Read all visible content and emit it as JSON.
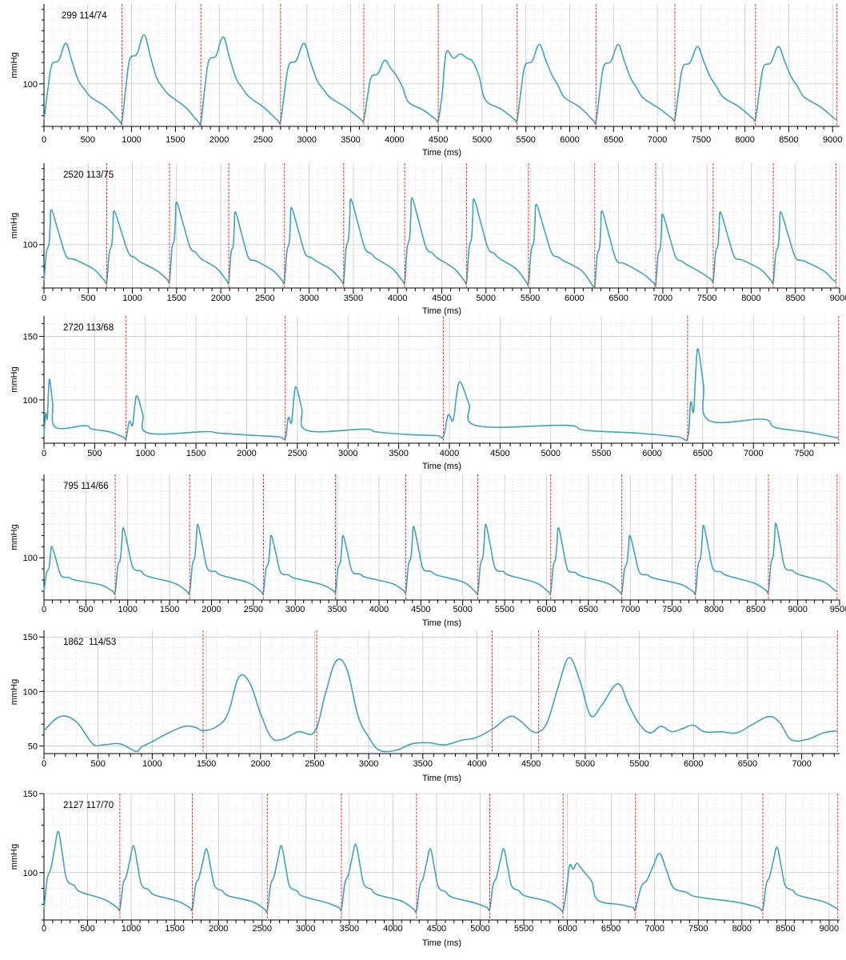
{
  "colors": {
    "trace": "#3fa2c3",
    "marker": "#e8312f",
    "grid_major": "#c8c8c8",
    "grid_minor": "#e2e2e2",
    "axis": "#000000"
  },
  "chart_data": [
    {
      "type": "line",
      "title": "299 114/74",
      "xlabel": "Time (ms)",
      "ylabel": "mmHg",
      "xlim": [
        0,
        9080
      ],
      "ylim": [
        60,
        175
      ],
      "x_ticks": [
        0,
        500,
        1000,
        1500,
        2000,
        2500,
        3000,
        3500,
        4000,
        4500,
        5000,
        5500,
        6000,
        6500,
        7000,
        7500,
        8000,
        8500,
        9000
      ],
      "y_ticks": [
        100
      ],
      "grid": true,
      "beats": [
        0,
        890,
        1790,
        2700,
        3650,
        4500,
        5400,
        6300,
        7200,
        8120,
        9050
      ],
      "systolic": [
        138,
        146,
        144,
        138,
        122,
        128,
        137,
        137,
        135,
        135
      ],
      "diastolic": [
        66,
        65,
        64,
        65,
        66,
        66,
        66,
        65,
        67,
        67
      ],
      "notch_ratio": [
        0.72,
        0.72,
        0.72,
        0.72,
        0.72,
        1.02,
        0.72,
        0.72,
        0.72,
        0.72
      ],
      "notch_level": [
        0.52,
        0.5,
        0.52,
        0.52,
        0.74,
        0.88,
        0.6,
        0.56,
        0.58,
        0.58
      ],
      "tidal_pos": 0.1,
      "peak_pos": 0.28,
      "notch_pos": 0.44,
      "dicrotic_pos": 0.52,
      "dicrotic_size": 0.06,
      "dicrotic_level": 0.3,
      "markers": [
        890,
        1790,
        2700,
        3650,
        4500,
        5400,
        6300,
        7200,
        8120,
        9050
      ]
    },
    {
      "type": "line",
      "title": "2520 113/75",
      "xlabel": "Time (ms)",
      "ylabel": "mmHg",
      "xlim": [
        0,
        9000
      ],
      "ylim": [
        60,
        175
      ],
      "x_ticks": [
        0,
        500,
        1000,
        1500,
        2000,
        2500,
        3000,
        3500,
        4000,
        4500,
        5000,
        5500,
        6000,
        6500,
        7000,
        7500,
        8000,
        8500,
        9000
      ],
      "y_ticks": [
        100
      ],
      "grid": true,
      "beats": [
        0,
        710,
        1420,
        2090,
        2720,
        3390,
        4080,
        4780,
        5480,
        6230,
        6920,
        7570,
        8250,
        8960
      ],
      "systolic": [
        132,
        131,
        139,
        130,
        134,
        142,
        143,
        142,
        137,
        131,
        128,
        130,
        130
      ],
      "diastolic": [
        67,
        66,
        67,
        66,
        66,
        66,
        66,
        66,
        65,
        62,
        64,
        67,
        66
      ],
      "notch_ratio": [
        0.52,
        0.52,
        0.52,
        0.52,
        0.52,
        0.52,
        0.52,
        0.52,
        0.52,
        0.52,
        0.52,
        0.52,
        0.52
      ],
      "notch_level": [
        0.35,
        0.4,
        0.42,
        0.35,
        0.38,
        0.4,
        0.4,
        0.4,
        0.38,
        0.35,
        0.38,
        0.35,
        0.35
      ],
      "tidal_pos": 0.08,
      "peak_pos": 0.12,
      "notch_pos": 0.35,
      "dicrotic_pos": 0.45,
      "dicrotic_size": 0.1,
      "dicrotic_level": 0.28,
      "markers": [
        710,
        1420,
        2090,
        2720,
        3390,
        4080,
        4780,
        5480,
        6230,
        6920,
        7570,
        8250,
        8960
      ]
    },
    {
      "type": "line",
      "title": "2720 113/68",
      "xlabel": "Time (ms)",
      "ylabel": "mmHg",
      "xlim": [
        0,
        7850
      ],
      "ylim": [
        66,
        166
      ],
      "x_ticks": [
        0,
        500,
        1000,
        1500,
        2000,
        2500,
        3000,
        3500,
        4000,
        4500,
        5000,
        5500,
        6000,
        6500,
        7000,
        7500
      ],
      "y_ticks": [
        100,
        150
      ],
      "grid": true,
      "beats": [
        0,
        810,
        2380,
        3940,
        6350,
        7840
      ],
      "systolic": [
        116,
        103,
        110,
        114,
        140
      ],
      "diastolic": [
        72,
        70,
        70,
        71,
        70
      ],
      "notch_ratio": [
        0.3,
        0.3,
        0.3,
        0.3,
        0.3
      ],
      "notch_level": [
        0.15,
        0.12,
        0.15,
        0.2,
        0.2
      ],
      "tidal_pos": 0.04,
      "peak_pos": 0.07,
      "notch_pos": 0.14,
      "dicrotic_pos": 0.5,
      "dicrotic_size": 0.12,
      "dicrotic_level": 0.12,
      "markers": [
        810,
        2380,
        3940,
        6350,
        7840
      ]
    },
    {
      "type": "line",
      "title": "795 114/66",
      "xlabel": "Time (ms)",
      "ylabel": "mmHg",
      "xlim": [
        0,
        9500
      ],
      "ylim": [
        62,
        175
      ],
      "x_ticks": [
        0,
        500,
        1000,
        1500,
        2000,
        2500,
        3000,
        3500,
        4000,
        4500,
        5000,
        5500,
        6000,
        6500,
        7000,
        7500,
        8000,
        8500,
        9000,
        9500
      ],
      "y_ticks": [
        100
      ],
      "grid": true,
      "beats": [
        0,
        850,
        1740,
        2620,
        3480,
        4320,
        5180,
        6050,
        6900,
        7780,
        8650,
        9470
      ],
      "systolic": [
        110,
        127,
        130,
        120,
        120,
        128,
        130,
        127,
        120,
        129,
        131
      ],
      "diastolic": [
        70,
        69,
        69,
        69,
        70,
        70,
        69,
        69,
        69,
        69,
        70
      ],
      "notch_ratio": [
        0.52,
        0.52,
        0.52,
        0.52,
        0.52,
        0.52,
        0.52,
        0.52,
        0.52,
        0.52,
        0.52
      ],
      "notch_level": [
        0.35,
        0.38,
        0.35,
        0.35,
        0.35,
        0.35,
        0.35,
        0.35,
        0.35,
        0.35,
        0.35
      ],
      "tidal_pos": 0.07,
      "peak_pos": 0.11,
      "notch_pos": 0.24,
      "dicrotic_pos": 0.35,
      "dicrotic_size": 0.1,
      "dicrotic_level": 0.25,
      "markers": [
        850,
        1740,
        2620,
        3480,
        4320,
        5180,
        6050,
        6900,
        7780,
        8650,
        9470
      ]
    },
    {
      "type": "line",
      "title": "1862  114/53",
      "xlabel": "Time (ms)",
      "ylabel": "mmHg",
      "xlim": [
        0,
        7350
      ],
      "ylim": [
        43,
        156
      ],
      "x_ticks": [
        0,
        500,
        1000,
        1500,
        2000,
        2500,
        3000,
        3500,
        4000,
        4500,
        5000,
        5500,
        6000,
        6500,
        7000
      ],
      "y_ticks": [
        50,
        100,
        150
      ],
      "grid": true,
      "series": [
        {
          "x": [
            0,
            150,
            300,
            450,
            550,
            700,
            850,
            900,
            1000,
            1150,
            1300,
            1400,
            1470,
            1600,
            1700,
            1800,
            1900,
            2000,
            2100,
            2200,
            2350,
            2500,
            2600,
            2700,
            2800,
            2900,
            3000,
            3100,
            3250,
            3400,
            3550,
            3700,
            3850,
            4000,
            4150,
            4300,
            4400,
            4500,
            4570,
            4650,
            4750,
            4850,
            4950,
            5050,
            5150,
            5300,
            5400,
            5500,
            5600,
            5700,
            5800,
            5900,
            6000,
            6100,
            6250,
            6400,
            6550,
            6700,
            6800,
            6900,
            7050,
            7200,
            7330
          ],
          "y": [
            64,
            77,
            72,
            52,
            51,
            52,
            45,
            49,
            54,
            62,
            68,
            67,
            64,
            68,
            80,
            113,
            108,
            80,
            58,
            56,
            63,
            63,
            98,
            128,
            120,
            78,
            58,
            46,
            46,
            52,
            53,
            51,
            55,
            58,
            66,
            77,
            73,
            64,
            63,
            72,
            104,
            131,
            110,
            78,
            87,
            107,
            88,
            70,
            62,
            68,
            63,
            66,
            69,
            63,
            63,
            62,
            70,
            77,
            71,
            56,
            56,
            62,
            64
          ]
        }
      ],
      "markers": [
        1470,
        2520,
        4140,
        4570,
        7330
      ]
    },
    {
      "type": "line",
      "title": "2127 117/70",
      "xlabel": "Time (ms)",
      "ylabel": "mmHg",
      "xlim": [
        0,
        9120
      ],
      "ylim": [
        70,
        150
      ],
      "x_ticks": [
        0,
        500,
        1000,
        1500,
        2000,
        2500,
        3000,
        3500,
        4000,
        4500,
        5000,
        5500,
        6000,
        6500,
        7000,
        7500,
        8000,
        8500,
        9000
      ],
      "y_ticks": [
        100,
        150
      ],
      "grid": true,
      "beats": [
        0,
        870,
        1700,
        2560,
        3410,
        4270,
        5110,
        5950,
        6780,
        8240,
        9100
      ],
      "systolic": [
        126,
        117,
        115,
        117,
        118,
        115,
        115,
        106,
        112,
        116
      ],
      "diastolic": [
        77,
        77,
        77,
        76,
        77,
        76,
        77,
        76,
        77,
        77
      ],
      "notch_ratio": [
        0.52,
        0.52,
        0.52,
        0.52,
        0.52,
        0.52,
        0.52,
        0.95,
        0.52,
        0.52
      ],
      "notch_level": [
        0.38,
        0.38,
        0.38,
        0.38,
        0.38,
        0.38,
        0.38,
        0.8,
        0.38,
        0.38
      ],
      "tidal_pos": 0.09,
      "peak_pos": 0.19,
      "notch_pos": 0.3,
      "dicrotic_pos": 0.4,
      "dicrotic_size": 0.06,
      "dicrotic_level": 0.22,
      "markers": [
        870,
        1700,
        2560,
        3410,
        4270,
        5110,
        5950,
        6780,
        8240,
        9100
      ]
    }
  ]
}
